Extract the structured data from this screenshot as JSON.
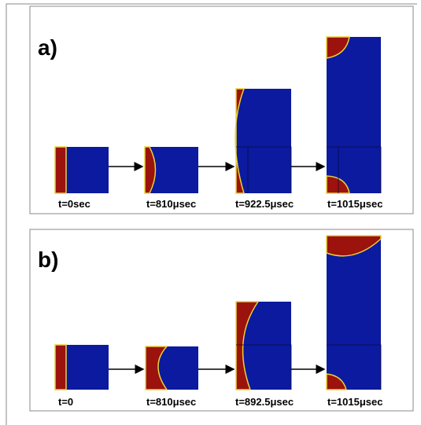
{
  "panels": [
    {
      "label": "a)",
      "snapshots": [
        {
          "time": "t=0sec"
        },
        {
          "time": "t=810μsec"
        },
        {
          "time": "t=922.5μsec"
        },
        {
          "time": "t=1015μsec"
        }
      ]
    },
    {
      "label": "b)",
      "snapshots": [
        {
          "time": "t=0"
        },
        {
          "time": "t=810μsec"
        },
        {
          "time": "t=892.5μsec"
        },
        {
          "time": "t=1015μsec"
        }
      ]
    }
  ]
}
